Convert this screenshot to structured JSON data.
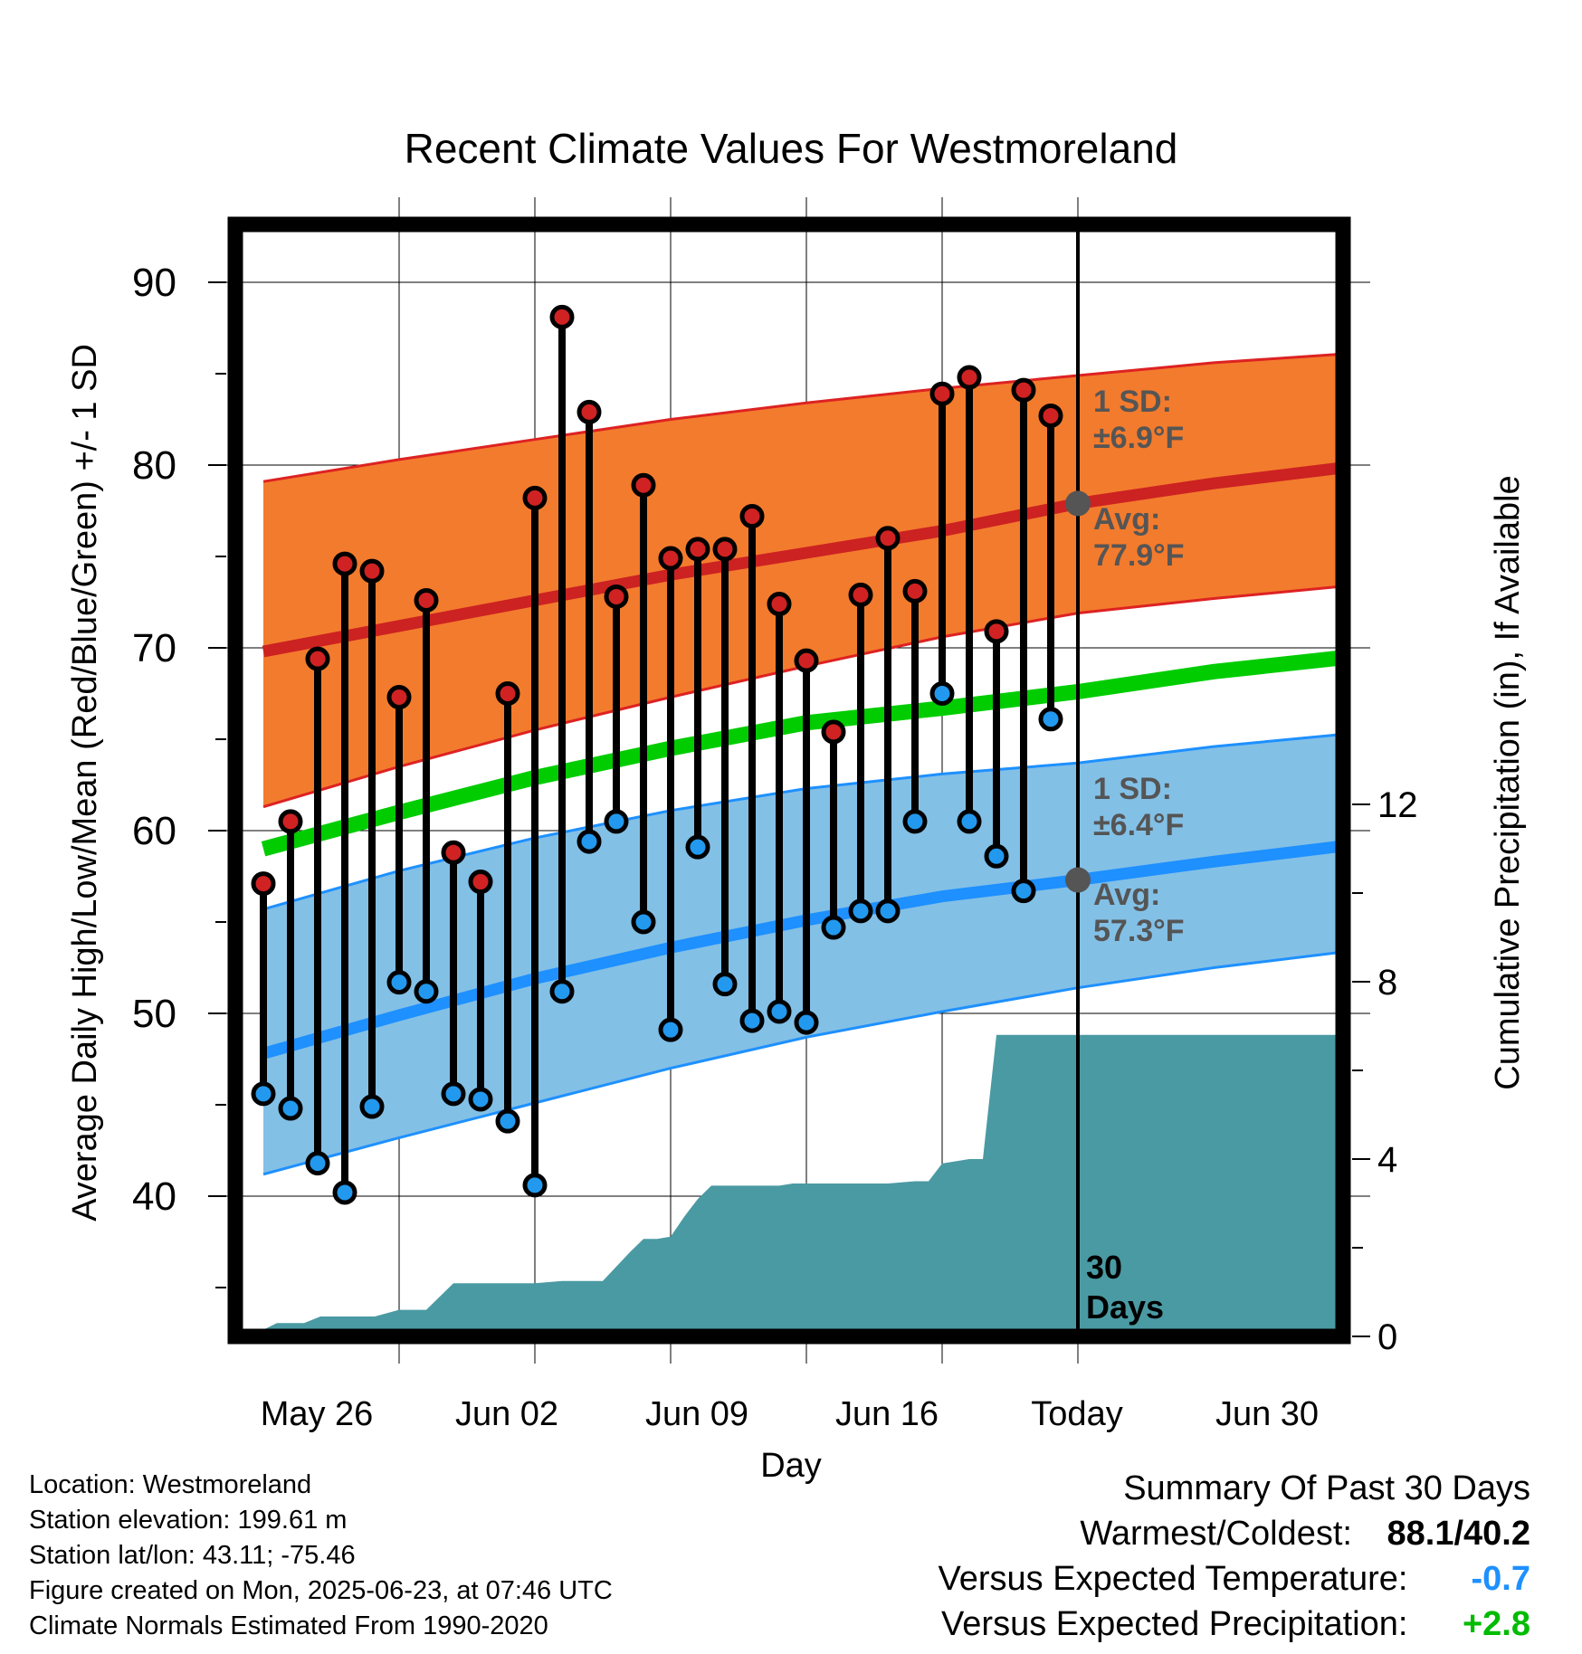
{
  "chart_data": {
    "type": "line",
    "title": "Recent Climate Values For Westmoreland",
    "xlabel": "Day",
    "ylabel": "Average Daily High/Low/Mean (Red/Blue/Green) +/- 1 SD",
    "y2label": "Cumulative Precipitation (in), If Available",
    "ylim": [
      32,
      93
    ],
    "y2lim": [
      0,
      24
    ],
    "yticks": [
      "40",
      "50",
      "60",
      "70",
      "80",
      "90"
    ],
    "y2ticks": [
      "0",
      "4",
      "8",
      "12"
    ],
    "xticks": [
      "May 26",
      "Jun 02",
      "Jun 09",
      "Jun 16",
      "Today",
      "Jun 30"
    ],
    "grid": true,
    "normals": {
      "days": [
        -30,
        -25,
        -20,
        -15,
        -10,
        -5,
        0,
        5,
        10
      ],
      "high_mean": [
        69.8,
        71.2,
        72.6,
        74.0,
        75.2,
        76.4,
        77.9,
        79.0,
        79.9
      ],
      "high_upper": [
        79.1,
        80.3,
        81.4,
        82.5,
        83.4,
        84.2,
        84.9,
        85.6,
        86.1
      ],
      "high_lower": [
        61.3,
        63.5,
        65.5,
        67.3,
        69.0,
        70.6,
        71.9,
        72.7,
        73.4
      ],
      "overall_mean": [
        59.0,
        61.0,
        62.9,
        64.5,
        65.9,
        66.7,
        67.6,
        68.7,
        69.5
      ],
      "low_mean": [
        47.8,
        49.9,
        51.9,
        53.6,
        55.1,
        56.4,
        57.3,
        58.3,
        59.2
      ],
      "low_upper": [
        55.7,
        57.8,
        59.6,
        61.1,
        62.3,
        63.1,
        63.7,
        64.6,
        65.3
      ],
      "low_lower": [
        41.2,
        43.2,
        45.1,
        47.0,
        48.7,
        50.1,
        51.4,
        52.5,
        53.4
      ]
    },
    "daily": {
      "days": [
        -30,
        -29,
        -28,
        -27,
        -26,
        -25,
        -24,
        -23,
        -22,
        -21,
        -20,
        -19,
        -18,
        -17,
        -16,
        -15,
        -14,
        -13,
        -12,
        -11,
        -10,
        -9,
        -8,
        -7,
        -6,
        -5,
        -4,
        -3,
        -2,
        -1
      ],
      "highs": [
        57.1,
        60.5,
        69.4,
        74.6,
        74.2,
        67.3,
        72.6,
        58.8,
        57.2,
        67.5,
        78.2,
        88.1,
        82.9,
        72.8,
        78.9,
        74.9,
        75.4,
        75.4,
        77.2,
        72.4,
        69.3,
        65.4,
        72.9,
        76.0,
        73.1,
        83.9,
        84.8,
        70.9,
        84.1,
        82.7
      ],
      "lows": [
        45.6,
        44.8,
        41.8,
        40.2,
        44.9,
        51.7,
        51.2,
        45.6,
        45.3,
        44.1,
        40.6,
        51.2,
        59.4,
        60.5,
        55.0,
        49.1,
        59.1,
        51.6,
        49.6,
        50.1,
        49.5,
        54.7,
        55.6,
        55.6,
        60.5,
        67.5,
        60.5,
        58.6,
        56.7,
        66.1
      ]
    },
    "precipitation": {
      "days": [
        -30.5,
        -29.5,
        -29.1,
        -28.5,
        -27.9,
        -26.5,
        -25.9,
        -25.0,
        -24.5,
        -24.0,
        -23.0,
        -22.5,
        -21.0,
        -20.0,
        -19.0,
        -18.0,
        -17.5,
        -16.5,
        -16.0,
        -15.5,
        -15.0,
        -14.5,
        -14.0,
        -13.5,
        -13.0,
        -12.0,
        -11.0,
        -10.5,
        -9.0,
        -8.0,
        -7.0,
        -6.0,
        -5.5,
        -5.0,
        -4.0,
        -3.5,
        -3.0,
        -2.0,
        -1.5,
        -1.0,
        0.0,
        10.0
      ],
      "values": [
        0.0,
        0.3,
        0.3,
        0.3,
        0.45,
        0.45,
        0.45,
        0.6,
        0.6,
        0.6,
        1.2,
        1.2,
        1.2,
        1.2,
        1.25,
        1.25,
        1.25,
        1.9,
        2.2,
        2.2,
        2.25,
        2.7,
        3.1,
        3.4,
        3.4,
        3.4,
        3.4,
        3.45,
        3.45,
        3.45,
        3.45,
        3.5,
        3.5,
        3.9,
        4.0,
        4.0,
        6.8,
        6.8,
        6.8,
        6.8,
        6.8,
        6.8
      ]
    },
    "annotations": {
      "high_sd": [
        "1 SD:",
        "±6.9°F"
      ],
      "high_avg": [
        "Avg:",
        "77.9°F"
      ],
      "low_sd": [
        "1 SD:",
        "±6.4°F"
      ],
      "low_avg": [
        "Avg:",
        "57.3°F"
      ],
      "window": [
        "30",
        "Days"
      ]
    }
  },
  "colors": {
    "high_band": "#f37b2d",
    "high_line": "#cc2222",
    "low_band": "#83c0e6",
    "low_line": "#1e90ff",
    "mean_line": "#00cc00",
    "precip": "#4a9aa3",
    "annotation": "#555555",
    "high_dot": "#d02222",
    "low_dot": "#2299ee"
  },
  "footer": {
    "location": "Location: Westmoreland",
    "elevation": "Station elevation: 199.61 m",
    "latlon": "Station lat/lon: 43.11; -75.46",
    "created": "Figure created on Mon, 2025-06-23, at 07:46 UTC",
    "normals": "Climate Normals Estimated From 1990-2020"
  },
  "summary": {
    "title": "Summary Of Past 30 Days",
    "warm_cold_label": "Warmest/Coldest:",
    "warm_cold_value": "88.1/40.2",
    "temp_label": "Versus Expected Temperature:",
    "temp_value": "-0.7",
    "temp_color": "#1e90ff",
    "precip_label": "Versus Expected Precipitation:",
    "precip_value": "+2.8",
    "precip_color": "#00bb00"
  }
}
